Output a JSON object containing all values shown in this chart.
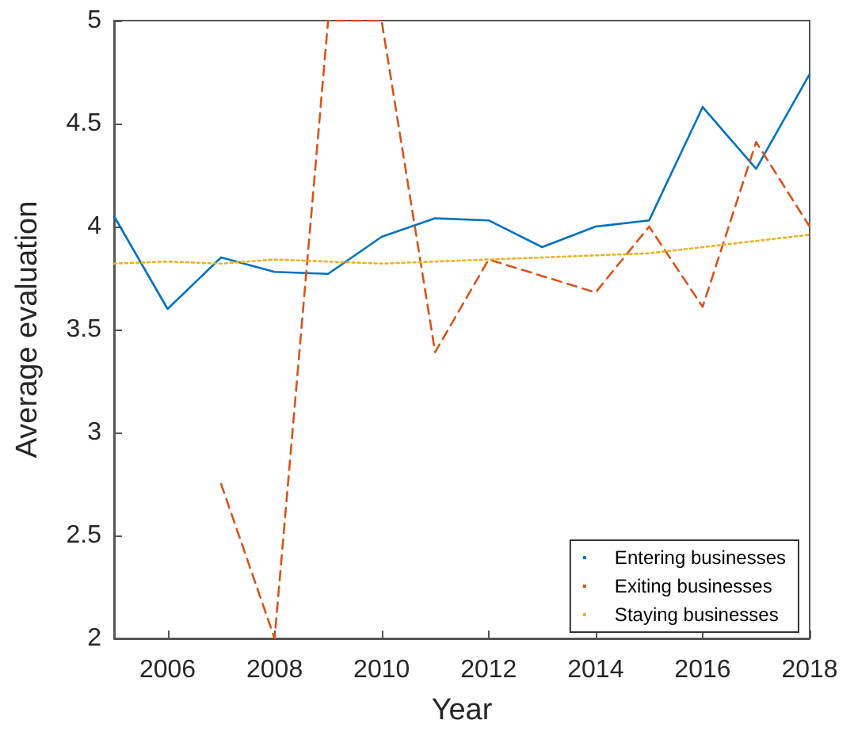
{
  "chart_data": {
    "type": "line",
    "xlabel": "Year",
    "ylabel": "Average evaluation",
    "x": [
      2005,
      2006,
      2007,
      2008,
      2009,
      2010,
      2011,
      2012,
      2013,
      2014,
      2015,
      2016,
      2017,
      2018
    ],
    "series": [
      {
        "name": "Entering businesses",
        "color": "#0072bd",
        "line_style": "solid",
        "values": [
          4.05,
          3.6,
          3.85,
          3.78,
          3.77,
          3.95,
          4.04,
          4.03,
          3.9,
          4.0,
          4.03,
          4.58,
          4.28,
          4.74
        ]
      },
      {
        "name": "Exiting businesses",
        "color": "#d95319",
        "line_style": "dashed",
        "values": [
          null,
          null,
          2.75,
          2.0,
          5.0,
          5.0,
          3.39,
          3.84,
          3.76,
          3.68,
          4.0,
          3.61,
          4.41,
          4.0
        ]
      },
      {
        "name": "Staying businesses",
        "color": "#edb120",
        "line_style": "dotted",
        "values": [
          3.82,
          3.83,
          3.82,
          3.84,
          3.83,
          3.82,
          3.83,
          3.84,
          3.85,
          3.86,
          3.87,
          3.9,
          3.93,
          3.96
        ]
      }
    ],
    "xlim": [
      2005,
      2018
    ],
    "xticks": [
      2006,
      2008,
      2010,
      2012,
      2014,
      2016,
      2018
    ],
    "ylim": [
      2,
      5
    ],
    "yticks": [
      2,
      2.5,
      3,
      3.5,
      4,
      4.5,
      5
    ],
    "grid": false,
    "legend": "bottom right",
    "marker": "none"
  }
}
